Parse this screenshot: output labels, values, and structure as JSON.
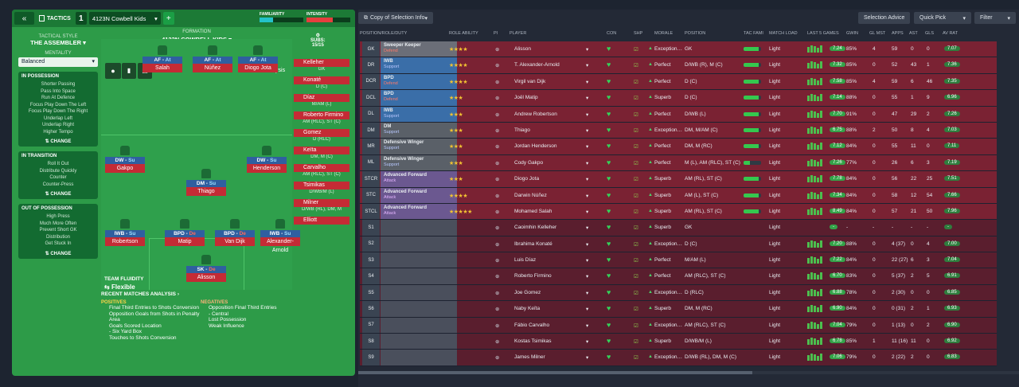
{
  "left": {
    "tactics_label": "TACTICS",
    "slot": "1",
    "tactic_name": "4123N Cowbell Kids",
    "familiarity": "FAMILIARITY",
    "intensity": "INTENSITY",
    "tactical_style_label": "TACTICAL STYLE",
    "tactical_style": "THE ASSEMBLER",
    "mentality_label": "MENTALITY",
    "mentality": "Balanced",
    "in_possession": "IN POSSESSION",
    "in_possession_items": [
      "Shorter Passing",
      "Pass Into Space",
      "Run At Defence",
      "Focus Play Down The Left",
      "Focus Play Down The Right",
      "Underlap Left",
      "Underlap Right",
      "Higher Tempo"
    ],
    "in_transition": "IN TRANSITION",
    "in_transition_items": [
      "Roll It Out",
      "Distribute Quickly",
      "Counter",
      "Counter-Press"
    ],
    "out_possession": "OUT OF POSSESSION",
    "out_possession_items": [
      "High Press",
      "Much More Often",
      "Prevent Short GK",
      "Distribution",
      "Get Stuck In"
    ],
    "change": "CHANGE",
    "formation_label": "FORMATION",
    "formation_name": "4123N COWBELL KIDS",
    "analysis": "Analysis",
    "subs_label": "SUBS:",
    "subs_count": "15/15",
    "team_fluidity_label": "TEAM FLUIDITY",
    "team_fluidity": "Flexible",
    "recent_label": "RECENT MATCHES ANALYSIS",
    "positives_label": "POSITIVES",
    "positives": [
      "Final Third Entries to Shots Conversion",
      "Opposition Goals from Shots in Penalty Area",
      "Goals Scored Location",
      "- Six Yard Box",
      "Touches to Shots Conversion"
    ],
    "negatives_label": "NEGATIVES",
    "negatives": [
      "Opposition Final Third Entries",
      "- Central",
      "Lost Possession",
      "Weak Influence"
    ]
  },
  "players": [
    {
      "role": "AF",
      "duty": "At",
      "name": "Salah"
    },
    {
      "role": "AF",
      "duty": "At",
      "name": "Núñez"
    },
    {
      "role": "AF",
      "duty": "At",
      "name": "Diogo Jota"
    },
    {
      "role": "DW",
      "duty": "Su",
      "name": "Gakpo"
    },
    {
      "role": "DW",
      "duty": "Su",
      "name": "Henderson"
    },
    {
      "role": "DM",
      "duty": "Su",
      "name": "Thiago"
    },
    {
      "role": "IWB",
      "duty": "Su",
      "name": "Robertson"
    },
    {
      "role": "BPD",
      "duty": "De",
      "name": "Matip"
    },
    {
      "role": "BPD",
      "duty": "De",
      "name": "Van Dijk"
    },
    {
      "role": "IWB",
      "duty": "Su",
      "name": "Alexander-Arnold"
    },
    {
      "role": "SK",
      "duty": "De",
      "name": "Alisson"
    }
  ],
  "subs": [
    {
      "name": "Kelleher",
      "pos": "GK"
    },
    {
      "name": "Konaté",
      "pos": "D (C)"
    },
    {
      "name": "Díaz",
      "pos": "M/AM (L)"
    },
    {
      "name": "Roberto Firmino",
      "pos": "AM (RLC), ST (C)"
    },
    {
      "name": "Gomez",
      "pos": "D (RLC)"
    },
    {
      "name": "Keïta",
      "pos": "DM, M (C)"
    },
    {
      "name": "Carvalho",
      "pos": "AM (RLC), ST (C)"
    },
    {
      "name": "Tsimikas",
      "pos": "D/WB/M (L)"
    },
    {
      "name": "Milner",
      "pos": "D/WB (RL), DM, M"
    },
    {
      "name": "Elliott",
      "pos": ""
    }
  ],
  "right": {
    "copy": "Copy of Selection Info",
    "advice": "Selection Advice",
    "quick": "Quick Pick",
    "filter": "Filter",
    "headers": [
      "POSITION/ROLE/DUTY",
      "ROLE ABILITY",
      "PI",
      "PLAYER",
      "CON",
      "SHP",
      "MORALE",
      "POSITION",
      "TAC FAMI",
      "MATCH LOAD",
      "LAST 5 GAMES",
      "GWIN",
      "GL MST",
      "APPS",
      "AST",
      "GLS",
      "AV RAT"
    ]
  },
  "rows": [
    {
      "pos": "GK",
      "role": "Sweeper Keeper",
      "duty": "Defend",
      "stars": "★★★★",
      "player": "Alisson",
      "morale": "Exception…",
      "position": "GK",
      "load": "Light",
      "l5": "7.24",
      "gwin": "85%",
      "glm": "4",
      "apps": "59",
      "ast": "0",
      "gls": "0",
      "rat": "7.07",
      "t": "gk",
      "d": "sub"
    },
    {
      "pos": "DR",
      "role": "IWB",
      "duty": "Support",
      "stars": "★★★★",
      "player": "T. Alexander-Arnold",
      "morale": "Perfect",
      "position": "D/WB (R), M (C)",
      "load": "Light",
      "l5": "7.32",
      "gwin": "85%",
      "glm": "0",
      "apps": "52",
      "ast": "43",
      "gls": "1",
      "rat": "7.36",
      "t": "def",
      "d": "sup"
    },
    {
      "pos": "DCR",
      "role": "BPD",
      "duty": "Defend",
      "stars": "★★★★",
      "player": "Virgil van Dijk",
      "morale": "Perfect",
      "position": "D (C)",
      "load": "Light",
      "l5": "7.58",
      "gwin": "85%",
      "glm": "4",
      "apps": "59",
      "ast": "6",
      "gls": "46",
      "rat": "7.35",
      "t": "def",
      "d": "sub"
    },
    {
      "pos": "DCL",
      "role": "BPD",
      "duty": "Defend",
      "stars": "★★★",
      "player": "Joël Matip",
      "morale": "Superb",
      "position": "D (C)",
      "load": "Light",
      "l5": "7.14",
      "gwin": "88%",
      "glm": "0",
      "apps": "55",
      "ast": "1",
      "gls": "9",
      "rat": "6.96",
      "t": "def",
      "d": "sub"
    },
    {
      "pos": "DL",
      "role": "IWB",
      "duty": "Support",
      "stars": "★★★",
      "player": "Andrew Robertson",
      "morale": "Perfect",
      "position": "D/WB (L)",
      "load": "Light",
      "l5": "7.70",
      "gwin": "91%",
      "glm": "0",
      "apps": "47",
      "ast": "29",
      "gls": "2",
      "rat": "7.26",
      "t": "def",
      "d": "sup"
    },
    {
      "pos": "DM",
      "role": "DM",
      "duty": "Support",
      "stars": "★★★",
      "player": "Thiago",
      "morale": "Exception…",
      "position": "DM, M/AM (C)",
      "load": "Light",
      "l5": "6.75",
      "gwin": "88%",
      "glm": "2",
      "apps": "50",
      "ast": "8",
      "gls": "4",
      "rat": "7.03",
      "t": "mid",
      "d": "sup"
    },
    {
      "pos": "MR",
      "role": "Defensive Winger",
      "duty": "Support",
      "stars": "★★★",
      "player": "Jordan Henderson",
      "morale": "Perfect",
      "position": "DM, M (RC)",
      "load": "Light",
      "l5": "7.12",
      "gwin": "84%",
      "glm": "0",
      "apps": "55",
      "ast": "11",
      "gls": "0",
      "rat": "7.11",
      "t": "mid",
      "d": "sup"
    },
    {
      "pos": "ML",
      "role": "Defensive Winger",
      "duty": "Support",
      "stars": "★★★",
      "player": "Cody Gakpo",
      "morale": "Perfect",
      "position": "M (L), AM (RLC), ST (C)",
      "load": "Light",
      "l5": "7.26",
      "gwin": "77%",
      "glm": "0",
      "apps": "26",
      "ast": "6",
      "gls": "3",
      "rat": "7.19",
      "t": "mid",
      "d": "sup"
    },
    {
      "pos": "STCR",
      "role": "Advanced Forward",
      "duty": "Attack",
      "stars": "★★★",
      "player": "Diogo Jota",
      "morale": "Superb",
      "position": "AM (RL), ST (C)",
      "load": "Light",
      "l5": "7.78",
      "gwin": "84%",
      "glm": "0",
      "apps": "56",
      "ast": "22",
      "gls": "25",
      "rat": "7.51",
      "t": "att",
      "d": "atk"
    },
    {
      "pos": "STC",
      "role": "Advanced Forward",
      "duty": "Attack",
      "stars": "★★★★",
      "player": "Darwin Núñez",
      "morale": "Superb",
      "position": "AM (L), ST (C)",
      "load": "Light",
      "l5": "7.34",
      "gwin": "84%",
      "glm": "0",
      "apps": "58",
      "ast": "12",
      "gls": "54",
      "rat": "7.66",
      "t": "att",
      "d": "atk"
    },
    {
      "pos": "STCL",
      "role": "Advanced Forward",
      "duty": "Attack",
      "stars": "★★★★★",
      "player": "Mohamed Salah",
      "morale": "Superb",
      "position": "AM (RL), ST (C)",
      "load": "Light",
      "l5": "8.49",
      "gwin": "84%",
      "glm": "0",
      "apps": "57",
      "ast": "21",
      "gls": "50",
      "rat": "7.96",
      "t": "att",
      "d": "atk"
    },
    {
      "pos": "S1",
      "role": "",
      "duty": "",
      "stars": "",
      "player": "Caoimhin Kelleher",
      "morale": "Superb",
      "position": "GK",
      "load": "Light",
      "l5": "-",
      "gwin": "-",
      "glm": "-",
      "apps": "-",
      "ast": "-",
      "gls": "-",
      "rat": "-"
    },
    {
      "pos": "S2",
      "role": "",
      "duty": "",
      "stars": "",
      "player": "Ibrahima Konaté",
      "morale": "Exception…",
      "position": "D (C)",
      "load": "Light",
      "l5": "7.20",
      "gwin": "88%",
      "glm": "0",
      "apps": "4 (37)",
      "ast": "0",
      "gls": "4",
      "rat": "7.00"
    },
    {
      "pos": "S3",
      "role": "",
      "duty": "",
      "stars": "",
      "player": "Luis Díaz",
      "morale": "Perfect",
      "position": "M/AM (L)",
      "load": "Light",
      "l5": "7.22",
      "gwin": "84%",
      "glm": "0",
      "apps": "22 (27)",
      "ast": "6",
      "gls": "3",
      "rat": "7.04"
    },
    {
      "pos": "S4",
      "role": "",
      "duty": "",
      "stars": "",
      "player": "Roberto Firmino",
      "morale": "Perfect",
      "position": "AM (RLC), ST (C)",
      "load": "Light",
      "l5": "6.70",
      "gwin": "83%",
      "glm": "0",
      "apps": "5 (37)",
      "ast": "2",
      "gls": "5",
      "rat": "6.91"
    },
    {
      "pos": "S5",
      "role": "",
      "duty": "",
      "stars": "",
      "player": "Joe Gomez",
      "morale": "Exception…",
      "position": "D (RLC)",
      "load": "Light",
      "l5": "6.88",
      "gwin": "78%",
      "glm": "0",
      "apps": "2 (30)",
      "ast": "0",
      "gls": "0",
      "rat": "6.85"
    },
    {
      "pos": "S6",
      "role": "",
      "duty": "",
      "stars": "",
      "player": "Naby Keïta",
      "morale": "Superb",
      "position": "DM, M (RC)",
      "load": "Light",
      "l5": "6.90",
      "gwin": "84%",
      "glm": "0",
      "apps": "0 (31)",
      "ast": "2",
      "gls": "1",
      "rat": "6.93"
    },
    {
      "pos": "S7",
      "role": "",
      "duty": "",
      "stars": "",
      "player": "Fábio Carvalho",
      "morale": "Exception…",
      "position": "AM (RLC), ST (C)",
      "load": "Light",
      "l5": "7.04",
      "gwin": "79%",
      "glm": "0",
      "apps": "1 (13)",
      "ast": "0",
      "gls": "2",
      "rat": "6.90"
    },
    {
      "pos": "S8",
      "role": "",
      "duty": "",
      "stars": "",
      "player": "Kostas Tsimikas",
      "morale": "Superb",
      "position": "D/WB/M (L)",
      "load": "Light",
      "l5": "6.78",
      "gwin": "85%",
      "glm": "1",
      "apps": "11 (16)",
      "ast": "11",
      "gls": "0",
      "rat": "6.92"
    },
    {
      "pos": "S9",
      "role": "",
      "duty": "",
      "stars": "",
      "player": "James Milner",
      "morale": "Exception…",
      "position": "D/WB (RL), DM, M (C)",
      "load": "Light",
      "l5": "7.06",
      "gwin": "79%",
      "glm": "0",
      "apps": "2 (22)",
      "ast": "2",
      "gls": "0",
      "rat": "6.83"
    }
  ]
}
